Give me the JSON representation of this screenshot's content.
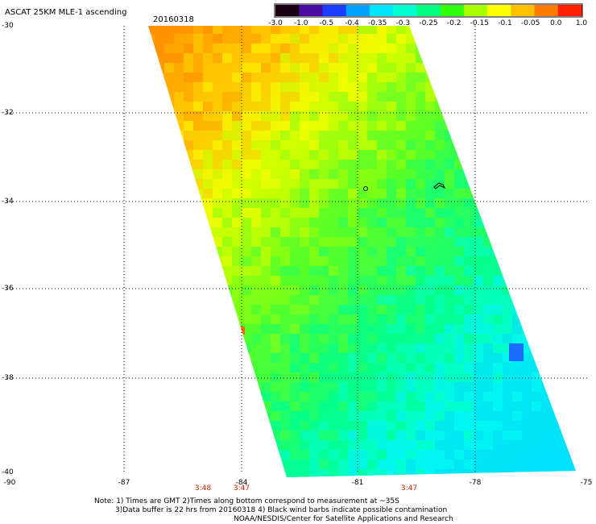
{
  "header": {
    "title": "ASCAT 25KM MLE-1 ascending",
    "date": "20160318"
  },
  "colorbar": {
    "labels": [
      "-3.0",
      "-1.0",
      "-0.5",
      "-0.4",
      "-0.35",
      "-0.3",
      "-0.25",
      "-0.2",
      "-0.15",
      "-0.1",
      "-0.05",
      "0.0",
      "1.0"
    ],
    "colors": [
      "#1a0010",
      "#4b0aa0",
      "#1a3cff",
      "#00a0ff",
      "#00e6ff",
      "#00ffd0",
      "#00ff80",
      "#30ff10",
      "#a8ff00",
      "#ffff00",
      "#ffc000",
      "#ff7a00",
      "#ff2000"
    ]
  },
  "axes": {
    "lat_labels": [
      "-30",
      "-32",
      "-34",
      "-36",
      "-38",
      "-40"
    ],
    "lon_labels": [
      "-90",
      "-87",
      "-84",
      "-81",
      "-78",
      "-75"
    ]
  },
  "times": [
    "3:48",
    "3:47",
    "3:47"
  ],
  "notes": {
    "line1": "Note: 1) Times are GMT 2)Times along bottom correspond to measurement at ~35S",
    "line2": "3)Data buffer is 22 hrs from 20160318 4) Black wind barbs indicate possible contamination",
    "line3": "NOAA/NESDIS/Center for Satellite Applications and Research"
  }
}
